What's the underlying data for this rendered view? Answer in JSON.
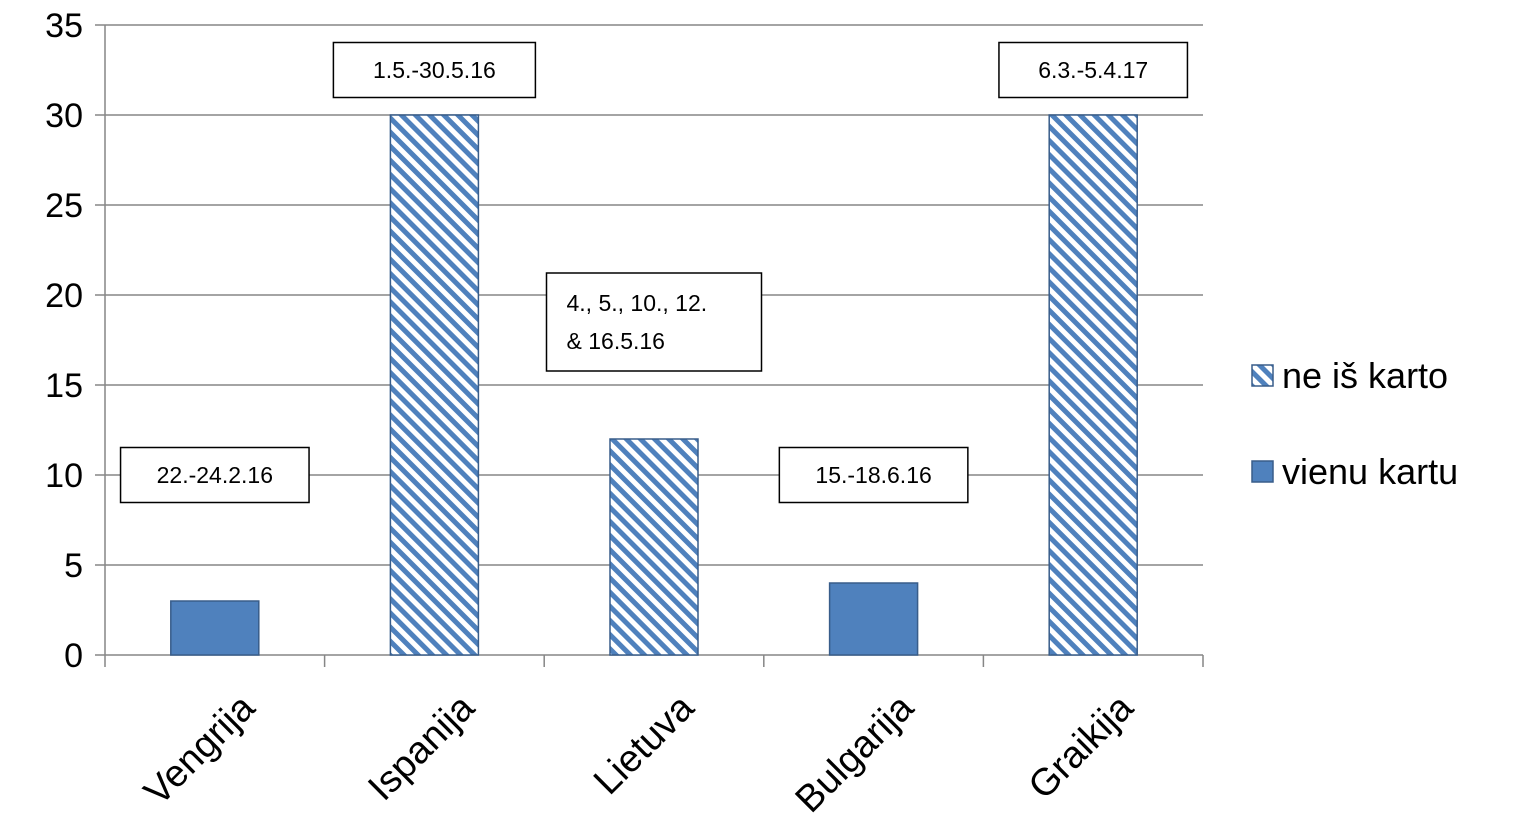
{
  "chart_data": {
    "type": "bar",
    "categories": [
      "Vengrija",
      "Ispanija",
      "Lietuva",
      "Bulgarija",
      "Graikija"
    ],
    "series": [
      {
        "name": "ne iš karto",
        "values": [
          null,
          30,
          12,
          null,
          30
        ],
        "pattern": "diagonal-stripes",
        "color": "#4F81BD"
      },
      {
        "name": "vienu kartu",
        "values": [
          3,
          null,
          null,
          4,
          null
        ],
        "pattern": "solid",
        "color": "#4F81BD"
      }
    ],
    "ylim": [
      0,
      35
    ],
    "yticks": [
      0,
      5,
      10,
      15,
      20,
      25,
      30,
      35
    ],
    "grid": true,
    "legend_position": "right",
    "annotations": [
      {
        "category": "Vengrija",
        "lines": [
          "22.-24.2.16"
        ],
        "y": 10
      },
      {
        "category": "Ispanija",
        "lines": [
          "1.5.-30.5.16"
        ],
        "y": 32.5
      },
      {
        "category": "Lietuva",
        "lines": [
          "4., 5., 10., 12.",
          "& 16.5.16"
        ],
        "y": 18.5
      },
      {
        "category": "Bulgarija",
        "lines": [
          "15.-18.6.16"
        ],
        "y": 10
      },
      {
        "category": "Graikija",
        "lines": [
          "6.3.-5.4.17"
        ],
        "y": 32.5
      }
    ],
    "title": "",
    "xlabel": "",
    "ylabel": ""
  }
}
